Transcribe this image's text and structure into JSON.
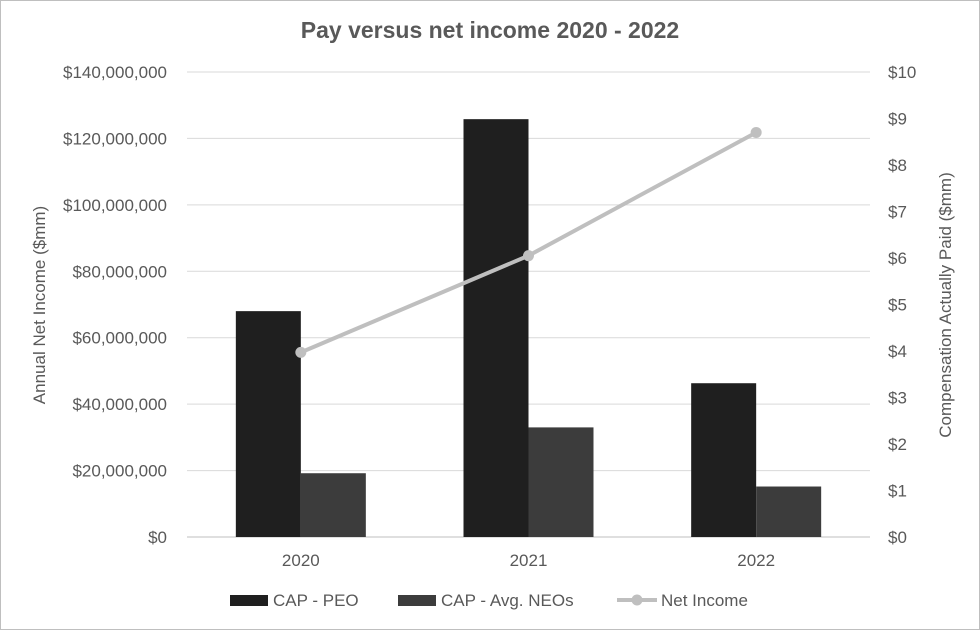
{
  "chart_data": {
    "type": "bar",
    "title": "Pay versus net income 2020 - 2022",
    "categories": [
      "2020",
      "2021",
      "2022"
    ],
    "series": [
      {
        "name": "CAP - PEO",
        "kind": "bar",
        "axis": "left",
        "color": "#1f1f1f",
        "values": [
          68000000,
          125800000,
          46300000
        ]
      },
      {
        "name": "CAP - Avg. NEOs",
        "kind": "bar",
        "axis": "left",
        "color": "#3c3c3c",
        "values": [
          19200000,
          33000000,
          15200000
        ]
      },
      {
        "name": "Net Income",
        "kind": "line",
        "axis": "right",
        "color": "#bfbfbf",
        "values": [
          3.97,
          6.05,
          8.7
        ]
      }
    ],
    "left_axis": {
      "label": "Annual Net Income ($mm)",
      "ylim": [
        0,
        140000000
      ],
      "ticks": [
        "$0",
        "$20,000,000",
        "$40,000,000",
        "$60,000,000",
        "$80,000,000",
        "$100,000,000",
        "$120,000,000",
        "$140,000,000"
      ]
    },
    "right_axis": {
      "label": "Compensation Actually Paid ($mm)",
      "ylim": [
        0,
        10
      ],
      "ticks": [
        "$0",
        "$1",
        "$2",
        "$3",
        "$4",
        "$5",
        "$6",
        "$7",
        "$8",
        "$9",
        "$10"
      ]
    },
    "grid": true,
    "legend_position": "bottom"
  }
}
